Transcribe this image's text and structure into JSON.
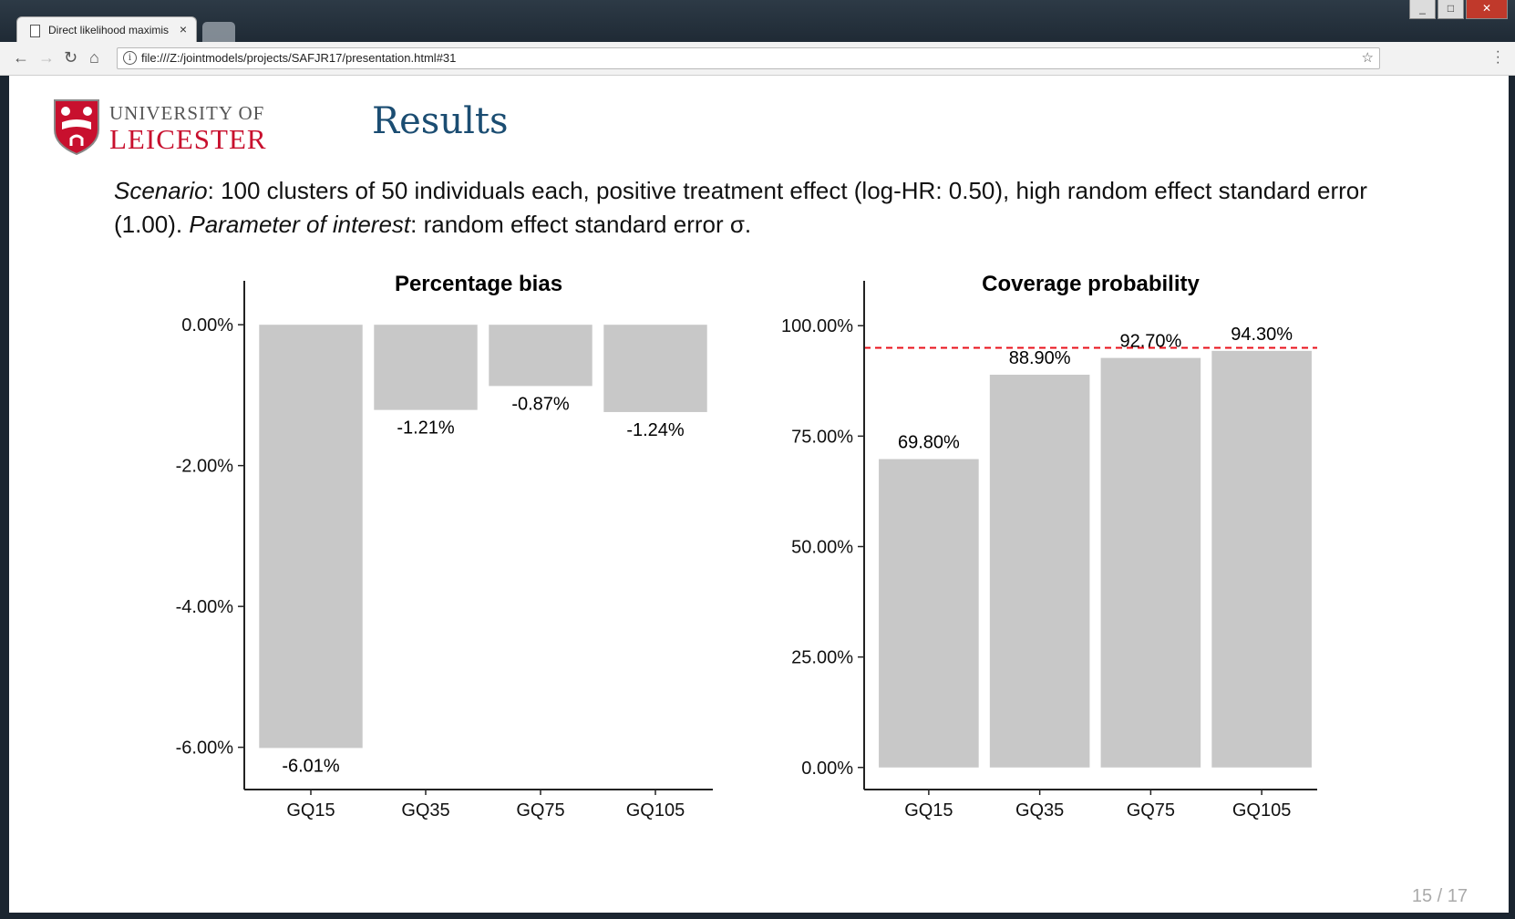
{
  "browser": {
    "tab_title": "Direct likelihood maximis",
    "tab_close": "×",
    "url": "file:///Z:/jointmodels/projects/SAFJR17/presentation.html#31",
    "window_controls": [
      "_",
      "□",
      "✕"
    ]
  },
  "slide": {
    "logo_line1": "UNIVERSITY OF",
    "logo_line2": "LEICESTER",
    "title": "Results",
    "scenario": {
      "label1": "Scenario",
      "text1": ": 100 clusters of 50 individuals each, positive treatment effect (log-HR: 0.50), high random effect standard error (1.00). ",
      "label2": "Parameter of interest",
      "text2": ": random effect standard error σ."
    },
    "page": "15 / 17"
  },
  "chart_data": [
    {
      "type": "bar",
      "title": "Percentage bias",
      "categories": [
        "GQ15",
        "GQ35",
        "GQ75",
        "GQ105"
      ],
      "values": [
        -6.01,
        -1.21,
        -0.87,
        -1.24
      ],
      "data_labels": [
        "-6.01%",
        "-1.21%",
        "-0.87%",
        "-1.24%"
      ],
      "yticks": [
        0,
        -2,
        -4,
        -6
      ],
      "ytick_labels": [
        "0.00%",
        "-2.00%",
        "-4.00%",
        "-6.00%"
      ],
      "ylim": [
        -6.6,
        0.3
      ],
      "bar_color": "#c8c8c8",
      "grid": false
    },
    {
      "type": "bar",
      "title": "Coverage probability",
      "categories": [
        "GQ15",
        "GQ35",
        "GQ75",
        "GQ105"
      ],
      "values": [
        69.8,
        88.9,
        92.7,
        94.3
      ],
      "data_labels": [
        "69.80%",
        "88.90%",
        "92.70%",
        "94.30%"
      ],
      "yticks": [
        0,
        25,
        50,
        75,
        100
      ],
      "ytick_labels": [
        "0.00%",
        "25.00%",
        "50.00%",
        "75.00%",
        "100.00%"
      ],
      "ylim": [
        -5,
        105
      ],
      "reference_line": 95,
      "reference_color": "#e8101a",
      "bar_color": "#c8c8c8",
      "grid": false
    }
  ]
}
